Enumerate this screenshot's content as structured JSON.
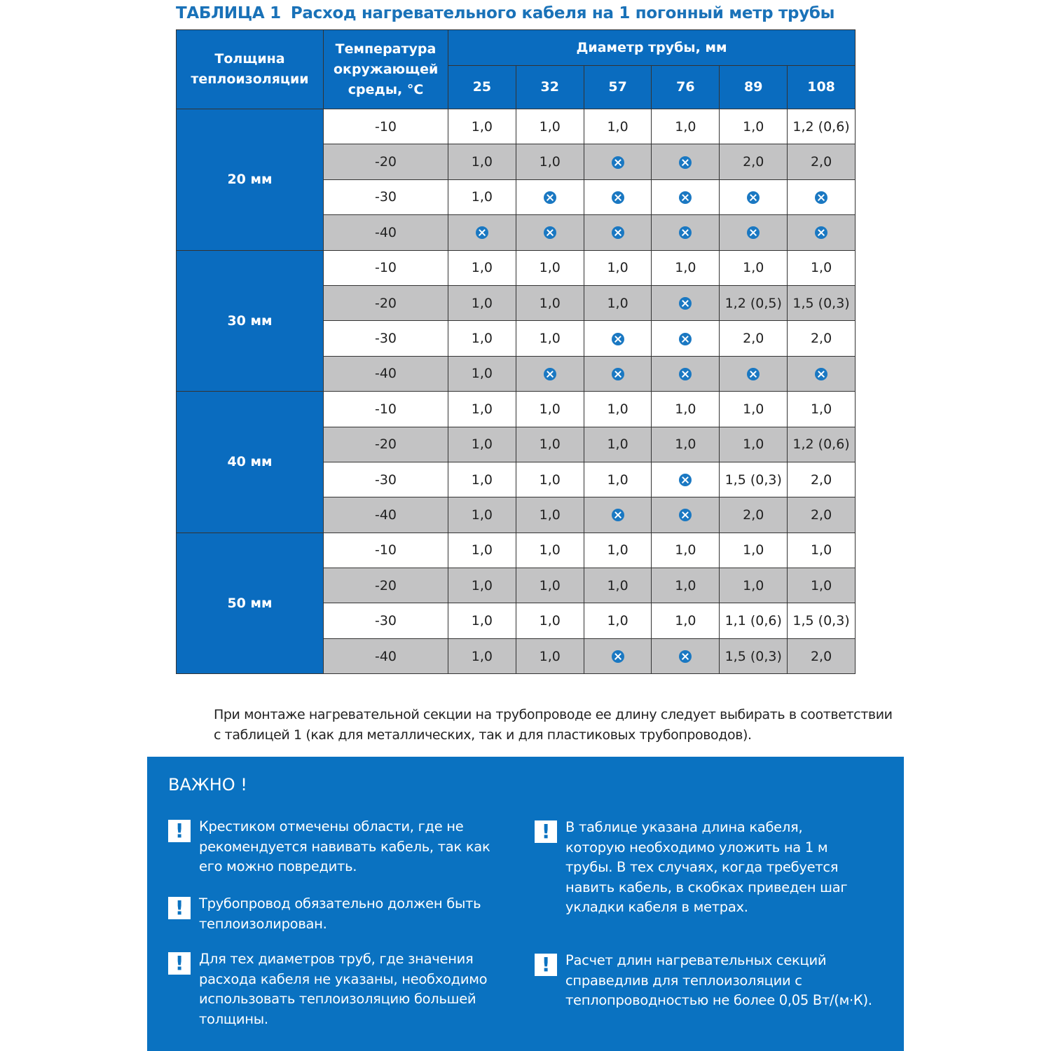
{
  "title": {
    "number": "ТАБЛИЦА 1",
    "text": "Расход нагревательного кабеля на 1 погонный метр трубы"
  },
  "table": {
    "headers": {
      "insulation": "Толщина теплоизоляции",
      "temperature": "Температура окружающей среды, °С",
      "diameter": "Диаметр трубы, мм",
      "diameters": [
        "25",
        "32",
        "57",
        "76",
        "89",
        "108"
      ]
    },
    "not_recommended_icon": "x-circle-icon",
    "groups": [
      {
        "label": "20 мм",
        "rows": [
          {
            "temp": "-10",
            "values": [
              "1,0",
              "1,0",
              "1,0",
              "1,0",
              "1,0",
              "1,2 (0,6)"
            ]
          },
          {
            "temp": "-20",
            "values": [
              "1,0",
              "1,0",
              "x",
              "x",
              "2,0",
              "2,0"
            ]
          },
          {
            "temp": "-30",
            "values": [
              "1,0",
              "x",
              "x",
              "x",
              "x",
              "x"
            ]
          },
          {
            "temp": "-40",
            "values": [
              "x",
              "x",
              "x",
              "x",
              "x",
              "x"
            ]
          }
        ]
      },
      {
        "label": "30 мм",
        "rows": [
          {
            "temp": "-10",
            "values": [
              "1,0",
              "1,0",
              "1,0",
              "1,0",
              "1,0",
              "1,0"
            ]
          },
          {
            "temp": "-20",
            "values": [
              "1,0",
              "1,0",
              "1,0",
              "x",
              "1,2 (0,5)",
              "1,5 (0,3)"
            ]
          },
          {
            "temp": "-30",
            "values": [
              "1,0",
              "1,0",
              "x",
              "x",
              "2,0",
              "2,0"
            ]
          },
          {
            "temp": "-40",
            "values": [
              "1,0",
              "x",
              "x",
              "x",
              "x",
              "x"
            ]
          }
        ]
      },
      {
        "label": "40 мм",
        "rows": [
          {
            "temp": "-10",
            "values": [
              "1,0",
              "1,0",
              "1,0",
              "1,0",
              "1,0",
              "1,0"
            ]
          },
          {
            "temp": "-20",
            "values": [
              "1,0",
              "1,0",
              "1,0",
              "1,0",
              "1,0",
              "1,2 (0,6)"
            ]
          },
          {
            "temp": "-30",
            "values": [
              "1,0",
              "1,0",
              "1,0",
              "x",
              "1,5 (0,3)",
              "2,0"
            ]
          },
          {
            "temp": "-40",
            "values": [
              "1,0",
              "1,0",
              "x",
              "x",
              "2,0",
              "2,0"
            ]
          }
        ]
      },
      {
        "label": "50 мм",
        "rows": [
          {
            "temp": "-10",
            "values": [
              "1,0",
              "1,0",
              "1,0",
              "1,0",
              "1,0",
              "1,0"
            ]
          },
          {
            "temp": "-20",
            "values": [
              "1,0",
              "1,0",
              "1,0",
              "1,0",
              "1,0",
              "1,0"
            ]
          },
          {
            "temp": "-30",
            "values": [
              "1,0",
              "1,0",
              "1,0",
              "1,0",
              "1,1 (0,6)",
              "1,5 (0,3)"
            ]
          },
          {
            "temp": "-40",
            "values": [
              "1,0",
              "1,0",
              "x",
              "x",
              "1,5 (0,3)",
              "2,0"
            ]
          }
        ]
      }
    ]
  },
  "note": "При монтаже нагревательной секции на трубопроводе ее длину следует выбирать в соответствии с таблицей 1 (как для металлических, так и для пластиковых трубопроводов).",
  "important": {
    "title": "ВАЖНО !",
    "icon": "exclamation-icon",
    "bang": "!",
    "items": [
      "Крестиком отмечены области, где не рекомендуется навивать кабель, так как его можно повредить.",
      "Трубопровод обязательно должен быть теплоизолирован.",
      "Для тех диаметров труб, где значения расхода кабеля не указаны, необходимо использовать теплоизоляцию большей толщины.",
      "В таблице указана длина кабеля, которую необходимо уложить на 1 м трубы. В тех случаях, когда требуется навить кабель, в скобках приведен шаг укладки кабеля в метрах.",
      "Расчет длин нагревательных секций справедлив для теплоизоляции с теплопроводностью не более 0,05 Вт/(м·К)."
    ]
  },
  "colors": {
    "brand_blue": "#0a6cbf",
    "title_blue": "#1a72b8",
    "row_gray": "#c3c3c4"
  }
}
